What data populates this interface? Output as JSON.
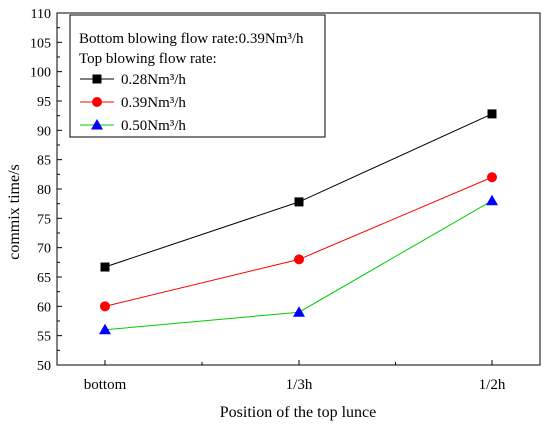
{
  "chart_data": {
    "type": "line",
    "xlabel": "Position of the top lunce",
    "ylabel": "commix time/s",
    "categories": [
      "bottom",
      "1/3h",
      "1/2h"
    ],
    "ylim": [
      50,
      110
    ],
    "y_ticks": [
      50,
      55,
      60,
      65,
      70,
      75,
      80,
      85,
      90,
      95,
      100,
      105,
      110
    ],
    "grid": false,
    "legend_placement": "top-left",
    "legend_title_1": "Bottom blowing flow rate:0.39Nm³/h",
    "legend_title_2": "Top blowing flow rate:",
    "series": [
      {
        "name": "0.28Nm³/h",
        "values": [
          66.7,
          77.8,
          92.8
        ],
        "color": "#000000",
        "marker": "square"
      },
      {
        "name": "0.39Nm³/h",
        "values": [
          60.0,
          68.0,
          82.0
        ],
        "color": "#ff0000",
        "marker": "circle"
      },
      {
        "name": "0.50Nm³/h",
        "values": [
          56.0,
          59.0,
          78.0
        ],
        "color": "#00cc00",
        "marker_color": "#0000ff",
        "marker": "triangle"
      }
    ]
  }
}
